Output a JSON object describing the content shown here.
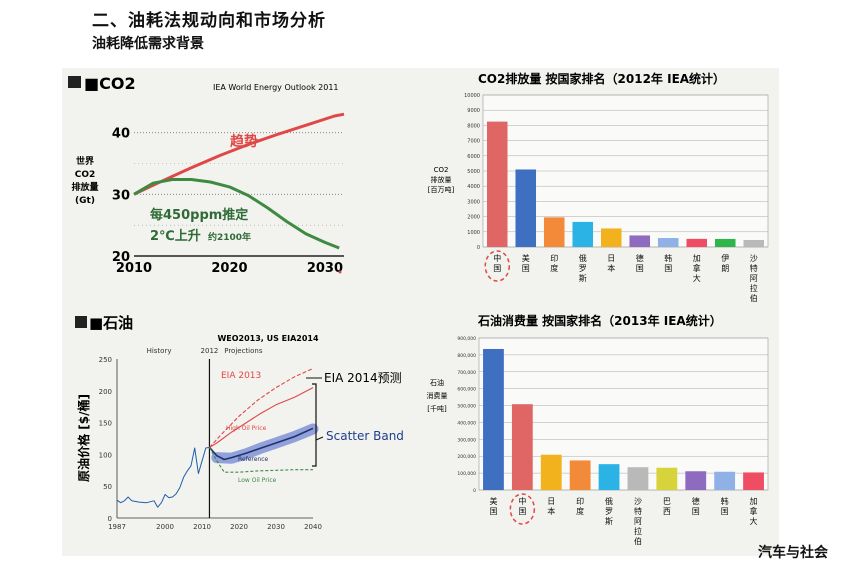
{
  "header": {
    "title": "二、油耗法规动向和市场分析",
    "subtitle": "油耗降低需求背景"
  },
  "credit": "汽车与社会",
  "chart_data": [
    {
      "id": "co2-trend",
      "type": "line",
      "section_label": "■CO2",
      "source": "IEA World Energy Outlook 2011",
      "ylabel": [
        "世界",
        "CO2",
        "排放量",
        "(Gt)"
      ],
      "xlim": [
        2010,
        2032
      ],
      "ylim": [
        20,
        44
      ],
      "x_ticks": [
        2010,
        2020,
        2030
      ],
      "y_ticks": [
        20,
        30,
        40
      ],
      "grid": true,
      "series": [
        {
          "name": "趋势",
          "color": "#e04848",
          "x": [
            2010,
            2013,
            2016,
            2019,
            2022,
            2025,
            2028,
            2031,
            2032
          ],
          "y": [
            30,
            32.2,
            34.3,
            36.3,
            38.1,
            39.7,
            41.2,
            42.7,
            43.0
          ]
        },
        {
          "name": "",
          "color": "#3e8a43",
          "x": [
            2010,
            2012,
            2014,
            2016,
            2018,
            2020,
            2022,
            2024,
            2026,
            2028,
            2030,
            2031.5
          ],
          "y": [
            30,
            31.8,
            32.4,
            32.4,
            32.0,
            31.2,
            29.8,
            27.8,
            25.6,
            23.6,
            22.2,
            21.3
          ]
        }
      ],
      "annotations": [
        {
          "text": "趋势",
          "color": "#e04848"
        },
        {
          "text": "每450ppm推定",
          "color": "#2f6b36"
        },
        {
          "text": "2℃上升",
          "color": "#2f6b36"
        },
        {
          "text": "约2100年",
          "color": "#2f6b36"
        }
      ]
    },
    {
      "id": "co2-ranking",
      "type": "bar",
      "title": "CO2排放量  按国家排名（2012年  IEA统计）",
      "ylabel": [
        "CO2",
        "排放量",
        "[百万吨]"
      ],
      "ylim": [
        0,
        10000
      ],
      "y_ticks": [
        0,
        1000,
        2000,
        3000,
        4000,
        5000,
        6000,
        7000,
        8000,
        9000,
        10000
      ],
      "categories": [
        "中国",
        "美国",
        "印度",
        "俄罗斯",
        "日本",
        "德国",
        "韩国",
        "加拿大",
        "伊朗",
        "沙特阿拉伯"
      ],
      "values": [
        8250,
        5100,
        1950,
        1650,
        1220,
        760,
        590,
        535,
        530,
        460
      ],
      "colors": [
        "#e06666",
        "#3f6fc1",
        "#f28a3a",
        "#2bb3e6",
        "#f2b21e",
        "#8e6bbf",
        "#8fb1e5",
        "#ef4d63",
        "#2fb54c",
        "#b9b9b9"
      ],
      "highlight": "中国"
    },
    {
      "id": "oil-price",
      "type": "line",
      "section_label": "■石油",
      "source": "WEO2013, US EIA2014",
      "ylabel": "原油价格 [$/桶]",
      "xlim": [
        1987,
        2040
      ],
      "ylim": [
        0,
        250
      ],
      "x_ticks": [
        1987,
        2000,
        2010,
        2020,
        2030,
        2040
      ],
      "y_ticks": [
        0,
        50,
        100,
        150,
        200,
        250
      ],
      "phase_labels": [
        "History",
        "2012",
        "Projections"
      ],
      "series": [
        {
          "name": "History",
          "color": "#1f5fa8",
          "x": [
            1987,
            1988,
            1989,
            1990,
            1991,
            1993,
            1995,
            1997,
            1998,
            1999,
            2000,
            2001,
            2002,
            2003,
            2004,
            2005,
            2006,
            2007,
            2008,
            2009,
            2010,
            2011,
            2012
          ],
          "y": [
            28,
            24,
            27,
            33,
            27,
            25,
            24,
            27,
            17,
            24,
            37,
            32,
            33,
            38,
            48,
            64,
            74,
            82,
            110,
            70,
            90,
            110,
            111
          ]
        },
        {
          "name": "EIA 2013",
          "color": "#e04848",
          "x": [
            2012,
            2015,
            2020,
            2025,
            2030,
            2035,
            2040
          ],
          "y": [
            111,
            130,
            160,
            185,
            205,
            222,
            235
          ]
        },
        {
          "name": "High Oil Price",
          "color": "#e04848",
          "x": [
            2012,
            2014,
            2018,
            2022,
            2026,
            2030,
            2035,
            2040
          ],
          "y": [
            111,
            118,
            135,
            150,
            165,
            178,
            190,
            205
          ]
        },
        {
          "name": "Reference",
          "color": "#223366",
          "x": [
            2012,
            2014,
            2016,
            2018,
            2022,
            2026,
            2030,
            2035,
            2040
          ],
          "y": [
            111,
            98,
            92,
            95,
            102,
            110,
            118,
            128,
            141
          ]
        },
        {
          "name": "Low Oil Price",
          "color": "#3e8a43",
          "x": [
            2012,
            2014,
            2016,
            2020,
            2025,
            2030,
            2035,
            2040
          ],
          "y": [
            111,
            90,
            72,
            72,
            74,
            75,
            76,
            76
          ]
        }
      ],
      "band": {
        "name": "Scatter Band",
        "color": "#2e4fa8",
        "x": [
          2014,
          2018,
          2022,
          2026,
          2030,
          2035,
          2040
        ],
        "y": [
          95,
          94,
          101,
          110,
          118,
          128,
          140
        ]
      },
      "annotations": [
        {
          "text": "EIA 2014预测"
        },
        {
          "text": "Scatter Band"
        }
      ]
    },
    {
      "id": "oil-ranking",
      "type": "bar",
      "title": "石油消费量  按国家排名（2013年  IEA统计）",
      "ylabel": [
        "石油",
        "消费量",
        "[千吨]"
      ],
      "ylim": [
        0,
        900000
      ],
      "y_ticks": [
        0,
        100000,
        200000,
        300000,
        400000,
        500000,
        600000,
        700000,
        800000,
        900000
      ],
      "y_tick_labels": [
        "0",
        "100,000",
        "200,000",
        "300,000",
        "400,000",
        "500,000",
        "600,000",
        "700,000",
        "800,000",
        "900,000"
      ],
      "categories": [
        "美国",
        "中国",
        "日本",
        "印度",
        "俄罗斯",
        "沙特阿拉伯",
        "巴西",
        "德国",
        "韩国",
        "加拿大"
      ],
      "values": [
        835000,
        508000,
        209000,
        175000,
        153000,
        135000,
        132000,
        111000,
        108000,
        104000
      ],
      "colors": [
        "#3f6fc1",
        "#e06666",
        "#f2b21e",
        "#f28a3a",
        "#2bb3e6",
        "#b9b9b9",
        "#d6d43a",
        "#8e6bbf",
        "#8fb1e5",
        "#ef4d63"
      ],
      "highlight": "中国"
    }
  ]
}
